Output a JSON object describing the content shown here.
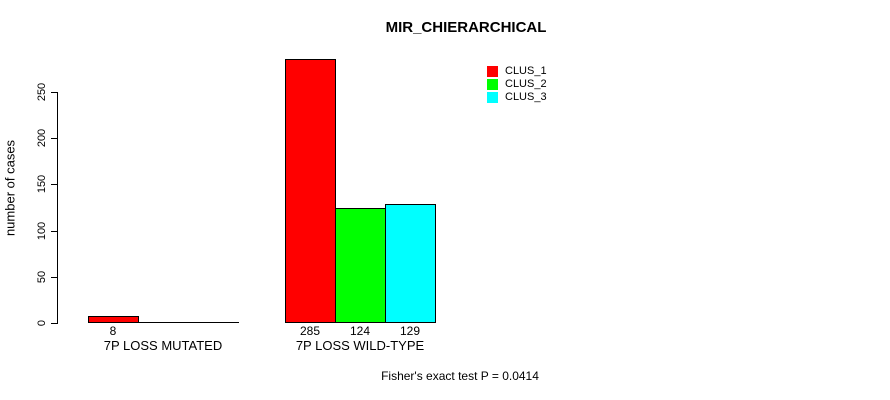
{
  "chart_data": {
    "type": "bar",
    "title": "MIR_CHIERARCHICAL",
    "ylabel": "number of cases",
    "xlabel": "",
    "categories": [
      "7P LOSS MUTATED",
      "7P LOSS WILD-TYPE"
    ],
    "series": [
      {
        "name": "CLUS_1",
        "color": "#FF0000",
        "values": [
          8,
          285
        ]
      },
      {
        "name": "CLUS_2",
        "color": "#00FF00",
        "values": [
          0,
          124
        ]
      },
      {
        "name": "CLUS_3",
        "color": "#00FFFF",
        "values": [
          0,
          129
        ]
      }
    ],
    "yticks": [
      0,
      50,
      100,
      150,
      200,
      250
    ],
    "ylim": [
      0,
      290
    ],
    "grid": false,
    "legend_position": "top-right",
    "value_labels_visible": [
      "8",
      "285",
      "124",
      "129"
    ],
    "annotation": "Fisher's exact test P = 0.0414"
  },
  "colors": {
    "background": "#FFFFFF",
    "axis": "#000000",
    "text": "#000000",
    "bar_border": "#000000"
  }
}
